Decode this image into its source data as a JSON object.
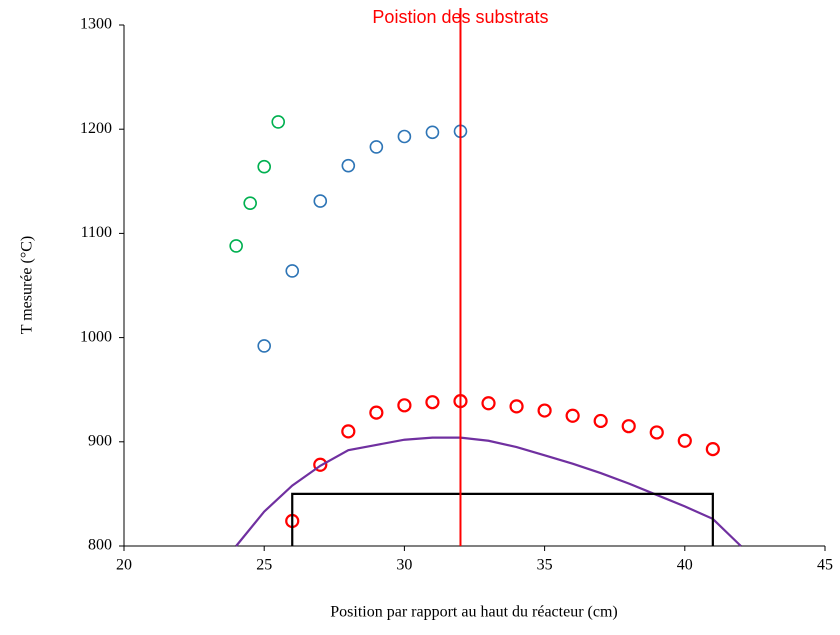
{
  "chart_data": {
    "type": "scatter",
    "x_label": "Position par rapport au haut du réacteur (cm)",
    "y_label": "T mesurée (°C)",
    "xlim": [
      20,
      45
    ],
    "ylim": [
      800,
      1300
    ],
    "xticks": [
      20,
      25,
      30,
      35,
      40,
      45
    ],
    "yticks": [
      800,
      900,
      1000,
      1100,
      1200,
      1300
    ],
    "grid": false,
    "series": [
      {
        "type": "scatter",
        "color": "#2e75b6",
        "x": [
          25,
          26,
          27,
          28,
          29,
          30,
          31,
          32
        ],
        "values": [
          992,
          1064,
          1131,
          1165,
          1183,
          1193,
          1197,
          1198
        ]
      },
      {
        "type": "scatter",
        "color": "#00b050",
        "x": [
          24,
          24.5,
          25,
          25.5
        ],
        "values": [
          1088,
          1129,
          1164,
          1207
        ]
      },
      {
        "type": "scatter",
        "color": "#ff0000",
        "x": [
          26,
          27,
          28,
          29,
          30,
          31,
          32,
          33,
          34,
          35,
          36,
          37,
          38,
          39,
          40,
          41
        ],
        "values": [
          824,
          878,
          910,
          928,
          935,
          938,
          939,
          937,
          934,
          930,
          925,
          920,
          915,
          909,
          901,
          893
        ]
      },
      {
        "type": "line",
        "color": "#7030a0",
        "x": [
          24,
          25,
          26,
          27,
          28,
          29,
          30,
          31,
          32,
          33,
          34,
          35,
          36,
          37,
          38,
          39,
          40,
          41,
          42
        ],
        "values": [
          800,
          833,
          858,
          877,
          892,
          897,
          902,
          904,
          904,
          901,
          895,
          887,
          879,
          870,
          860,
          849,
          838,
          826,
          800
        ]
      },
      {
        "type": "line",
        "color": "#000000",
        "x": [
          26,
          26,
          41,
          41
        ],
        "values": [
          800,
          850,
          850,
          800
        ]
      }
    ],
    "annotations": [
      {
        "text": "Poistion des substrats",
        "x": 32,
        "color": "#ff0000"
      }
    ]
  }
}
